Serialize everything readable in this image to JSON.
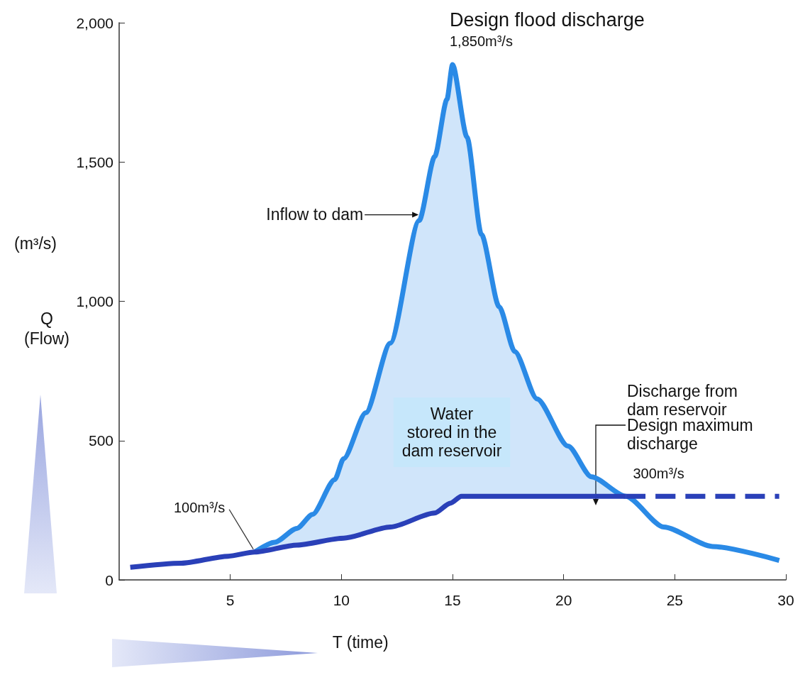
{
  "chart_data": {
    "type": "line",
    "xlabel": "T (time)",
    "ylabel": "Q\n(Flow)",
    "xlim": [
      0,
      30
    ],
    "xticks": [
      5,
      10,
      15,
      20,
      25,
      30
    ],
    "ylim": [
      0,
      2000
    ],
    "yticks": [
      {
        "value": 0,
        "label": "0"
      },
      {
        "value": 500,
        "label": "500"
      },
      {
        "value": 1000,
        "label": "1,000"
      },
      {
        "value": 1500,
        "label": "1,500"
      },
      {
        "value": 2000,
        "label": "2,000"
      }
    ],
    "marker": "none",
    "series": [
      {
        "color": "#2a8ae6",
        "x": [
          6.1,
          7,
          8,
          8.7,
          9.7,
          10.1,
          11.1,
          12.2,
          13.5,
          14.2,
          14.75,
          15,
          15.65,
          16.3,
          17.1,
          17.8,
          18.8,
          20.2,
          21.25,
          22.8,
          24.5,
          26.7,
          29.7
        ],
        "values": [
          100,
          135,
          185,
          235,
          360,
          435,
          600,
          850,
          1290,
          1520,
          1725,
          1850,
          1590,
          1240,
          980,
          820,
          650,
          480,
          370,
          300,
          190,
          120,
          70
        ],
        "lower": [
          100,
          112,
          125,
          133,
          145,
          150,
          170,
          190,
          220,
          240,
          265,
          285,
          300,
          300,
          300,
          300,
          300,
          300,
          300,
          300,
          null,
          null,
          null
        ],
        "upper": [
          100,
          135,
          185,
          235,
          360,
          435,
          600,
          850,
          1290,
          1520,
          1725,
          1850,
          1590,
          1240,
          980,
          820,
          650,
          480,
          370,
          300,
          null,
          null,
          null
        ]
      },
      {
        "color": "#2a40b8",
        "x": [
          0.5,
          2.8,
          4.9,
          6.1,
          8,
          10.1,
          12.2,
          14.2,
          14.9,
          15.4,
          22.8
        ],
        "values": [
          45,
          60,
          85,
          100,
          125,
          150,
          190,
          240,
          275,
          300,
          300
        ],
        "line_style": "solid"
      },
      {
        "color": "#2a40b8",
        "x": [
          22.8,
          29.7
        ],
        "values": [
          300,
          300
        ],
        "line_style": "dashed"
      }
    ],
    "annotations": [
      {
        "text": "Design flood discharge",
        "x": 15,
        "y": 1850
      },
      {
        "text": "1,850m³/s",
        "x": 15,
        "y": 1850
      },
      {
        "text": "Inflow to dam",
        "x": 13.6,
        "y": 1300
      },
      "Water\nstored in the\ndam reservoir",
      {
        "text": "100m³/s",
        "x": 6.1,
        "y": 100
      },
      "Discharge from\ndam reservoir",
      "Design maximum\ndischarge",
      {
        "text": "300m³/s",
        "x": 22.8,
        "y": 300
      },
      "(m³/s)"
    ]
  }
}
